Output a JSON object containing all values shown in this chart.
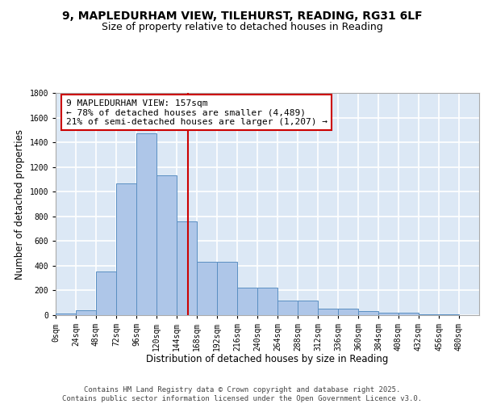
{
  "title_line1": "9, MAPLEDURHAM VIEW, TILEHURST, READING, RG31 6LF",
  "title_line2": "Size of property relative to detached houses in Reading",
  "xlabel": "Distribution of detached houses by size in Reading",
  "ylabel": "Number of detached properties",
  "bar_values": [
    10,
    40,
    355,
    1070,
    1470,
    1130,
    760,
    430,
    430,
    225,
    225,
    115,
    115,
    55,
    50,
    30,
    20,
    20,
    5,
    5,
    2
  ],
  "bin_edges": [
    0,
    24,
    48,
    72,
    96,
    120,
    144,
    168,
    192,
    216,
    240,
    264,
    288,
    312,
    336,
    360,
    384,
    408,
    432,
    456,
    480,
    504
  ],
  "bar_color": "#aec6e8",
  "bar_edge_color": "#5a8fc2",
  "vertical_line_x": 157,
  "annotation_text": "9 MAPLEDURHAM VIEW: 157sqm\n← 78% of detached houses are smaller (4,489)\n21% of semi-detached houses are larger (1,207) →",
  "annotation_box_color": "#ffffff",
  "annotation_box_edge_color": "#cc0000",
  "vline_color": "#cc0000",
  "ylim": [
    0,
    1800
  ],
  "yticks": [
    0,
    200,
    400,
    600,
    800,
    1000,
    1200,
    1400,
    1600,
    1800
  ],
  "xtick_labels": [
    "0sqm",
    "24sqm",
    "48sqm",
    "72sqm",
    "96sqm",
    "120sqm",
    "144sqm",
    "168sqm",
    "192sqm",
    "216sqm",
    "240sqm",
    "264sqm",
    "288sqm",
    "312sqm",
    "336sqm",
    "360sqm",
    "384sqm",
    "408sqm",
    "432sqm",
    "456sqm",
    "480sqm"
  ],
  "background_color": "#dce8f5",
  "grid_color": "#ffffff",
  "footer_text": "Contains HM Land Registry data © Crown copyright and database right 2025.\nContains public sector information licensed under the Open Government Licence v3.0.",
  "title_fontsize": 10,
  "subtitle_fontsize": 9,
  "axis_label_fontsize": 8.5,
  "tick_fontsize": 7,
  "annotation_fontsize": 8,
  "footer_fontsize": 6.5
}
